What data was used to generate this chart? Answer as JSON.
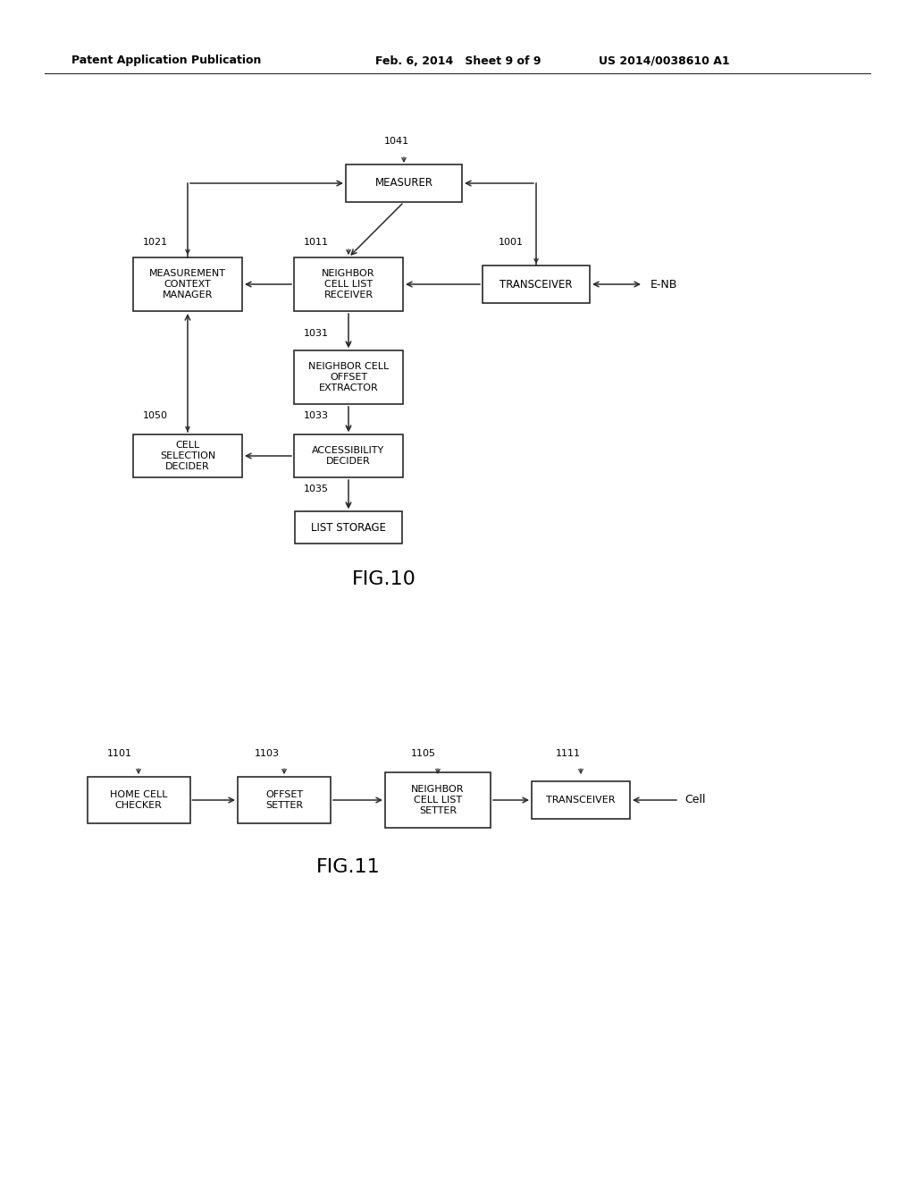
{
  "bg_color": "#ffffff",
  "header_left": "Patent Application Publication",
  "header_mid": "Feb. 6, 2014   Sheet 9 of 9",
  "header_right": "US 2014/0038610 A1",
  "fig10_caption": "FIG.10",
  "fig11_caption": "FIG.11"
}
